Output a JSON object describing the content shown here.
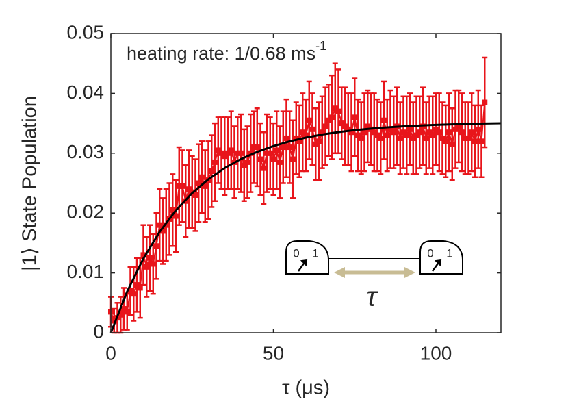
{
  "chart_data": {
    "type": "line",
    "annotation": "heating rate: 1/0.68 ms",
    "annotation_sup": "-1",
    "xlabel": "τ (μs)",
    "ylabel": "|1⟩ State Population",
    "inset": {
      "labels": [
        "0",
        "1",
        "0",
        "1"
      ],
      "tau": "τ"
    },
    "xlim": [
      0,
      120
    ],
    "ylim": [
      0,
      0.05
    ],
    "xticks": [
      0,
      50,
      100
    ],
    "yticks": [
      0,
      0.01,
      0.02,
      0.03,
      0.04,
      0.05
    ],
    "grid": false,
    "series": [
      {
        "color": "#e8151b",
        "marker": "square",
        "x": [
          0,
          1,
          2,
          3,
          4,
          5,
          6,
          7,
          8,
          9,
          10,
          11,
          12,
          13,
          14,
          15,
          16,
          17,
          18,
          19,
          20,
          21,
          22,
          23,
          24,
          25,
          26,
          27,
          28,
          29,
          30,
          31,
          32,
          33,
          34,
          35,
          36,
          37,
          38,
          39,
          40,
          41,
          42,
          43,
          44,
          45,
          46,
          47,
          48,
          49,
          50,
          51,
          52,
          53,
          54,
          55,
          56,
          57,
          58,
          59,
          60,
          61,
          62,
          63,
          64,
          65,
          66,
          67,
          68,
          69,
          70,
          71,
          72,
          73,
          74,
          75,
          76,
          77,
          78,
          79,
          80,
          81,
          82,
          83,
          84,
          85,
          86,
          87,
          88,
          89,
          90,
          91,
          92,
          93,
          94,
          95,
          96,
          97,
          98,
          99,
          100,
          101,
          102,
          103,
          104,
          105,
          106,
          107,
          108,
          109,
          110,
          111,
          112,
          113,
          114,
          115
        ],
        "values": [
          0.0035,
          0.002,
          0.0025,
          0.003,
          0.004,
          0.0035,
          0.007,
          0.0065,
          0.008,
          0.0075,
          0.013,
          0.011,
          0.0125,
          0.0115,
          0.0145,
          0.018,
          0.017,
          0.018,
          0.019,
          0.0205,
          0.0195,
          0.0245,
          0.0245,
          0.022,
          0.024,
          0.0235,
          0.023,
          0.025,
          0.026,
          0.0245,
          0.0255,
          0.027,
          0.0285,
          0.0305,
          0.03,
          0.0295,
          0.03,
          0.0305,
          0.0285,
          0.03,
          0.03,
          0.028,
          0.0285,
          0.03,
          0.031,
          0.031,
          0.029,
          0.0275,
          0.03,
          0.03,
          0.029,
          0.0305,
          0.0285,
          0.031,
          0.0325,
          0.031,
          0.029,
          0.0325,
          0.032,
          0.0335,
          0.033,
          0.0355,
          0.034,
          0.0315,
          0.032,
          0.0335,
          0.0345,
          0.0355,
          0.036,
          0.0375,
          0.037,
          0.035,
          0.0345,
          0.034,
          0.0335,
          0.036,
          0.033,
          0.0325,
          0.0335,
          0.0345,
          0.034,
          0.0335,
          0.033,
          0.0325,
          0.0355,
          0.033,
          0.034,
          0.0335,
          0.0345,
          0.0325,
          0.0335,
          0.033,
          0.034,
          0.0325,
          0.033,
          0.0335,
          0.0345,
          0.0325,
          0.0335,
          0.033,
          0.034,
          0.0335,
          0.0325,
          0.032,
          0.0335,
          0.0315,
          0.034,
          0.0345,
          0.0335,
          0.0325,
          0.0325,
          0.0335,
          0.032,
          0.034,
          0.032,
          0.0385
        ],
        "errors": [
          0.0025,
          0.002,
          0.0025,
          0.003,
          0.0035,
          0.003,
          0.004,
          0.0045,
          0.0045,
          0.005,
          0.005,
          0.005,
          0.0055,
          0.005,
          0.0055,
          0.006,
          0.0055,
          0.006,
          0.006,
          0.006,
          0.006,
          0.0065,
          0.006,
          0.006,
          0.0065,
          0.006,
          0.006,
          0.0065,
          0.006,
          0.006,
          0.0065,
          0.006,
          0.0065,
          0.0055,
          0.006,
          0.0065,
          0.006,
          0.0065,
          0.006,
          0.006,
          0.0065,
          0.006,
          0.006,
          0.0065,
          0.006,
          0.0065,
          0.006,
          0.006,
          0.0065,
          0.006,
          0.006,
          0.0065,
          0.006,
          0.006,
          0.0065,
          0.006,
          0.0065,
          0.006,
          0.006,
          0.0065,
          0.006,
          0.0065,
          0.006,
          0.006,
          0.0065,
          0.006,
          0.0065,
          0.006,
          0.007,
          0.0075,
          0.007,
          0.006,
          0.0065,
          0.006,
          0.0065,
          0.0065,
          0.006,
          0.006,
          0.0065,
          0.006,
          0.006,
          0.0065,
          0.006,
          0.006,
          0.0065,
          0.006,
          0.0065,
          0.006,
          0.0065,
          0.006,
          0.006,
          0.0065,
          0.006,
          0.006,
          0.0065,
          0.006,
          0.0065,
          0.006,
          0.006,
          0.0065,
          0.006,
          0.0065,
          0.006,
          0.006,
          0.0065,
          0.006,
          0.0065,
          0.006,
          0.0065,
          0.006,
          0.006,
          0.0065,
          0.006,
          0.0065,
          0.006,
          0.0075
        ]
      },
      {
        "color": "#000000",
        "x": [
          0,
          5,
          10,
          15,
          20,
          25,
          30,
          35,
          40,
          45,
          50,
          55,
          60,
          65,
          70,
          75,
          80,
          85,
          90,
          95,
          100,
          105,
          110,
          115,
          120
        ],
        "values": [
          0,
          0.00688,
          0.01241,
          0.01686,
          0.02045,
          0.02333,
          0.02565,
          0.02752,
          0.02902,
          0.03022,
          0.0312,
          0.03198,
          0.03261,
          0.03312,
          0.03352,
          0.03385,
          0.03411,
          0.03433,
          0.0345,
          0.03463,
          0.03474,
          0.03483,
          0.03491,
          0.03497,
          0.03501
        ]
      }
    ]
  }
}
